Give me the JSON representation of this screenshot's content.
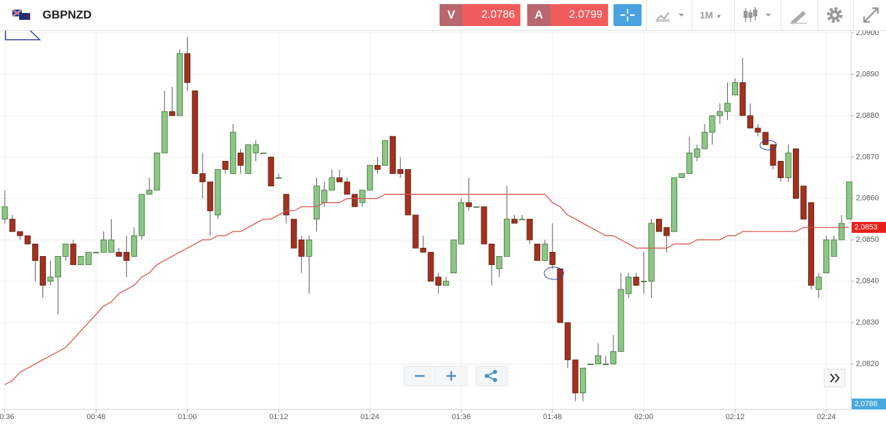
{
  "header": {
    "symbol": "GBPNZD",
    "bid_label": "V",
    "bid": 2.0786,
    "ask_label": "A",
    "ask": 2.0799,
    "timeframe": "1M"
  },
  "chart_data": {
    "type": "candlestick",
    "categories": [
      "00:36",
      null,
      null,
      null,
      null,
      null,
      null,
      null,
      null,
      null,
      null,
      null,
      "00:48",
      null,
      null,
      null,
      null,
      null,
      null,
      null,
      null,
      null,
      null,
      null,
      "01:00",
      null,
      null,
      null,
      null,
      null,
      null,
      null,
      null,
      null,
      null,
      null,
      "01:12",
      null,
      null,
      null,
      null,
      null,
      null,
      null,
      null,
      null,
      null,
      null,
      "01:24",
      null,
      null,
      null,
      null,
      null,
      null,
      null,
      null,
      null,
      null,
      null,
      "01:36",
      null,
      null,
      null,
      null,
      null,
      null,
      null,
      null,
      null,
      null,
      null,
      "01:48",
      null,
      null,
      null,
      null,
      null,
      null,
      null,
      null,
      null,
      null,
      null,
      "02:00",
      null,
      null,
      null,
      null,
      null,
      null,
      null,
      null,
      null,
      null,
      null,
      "02:12",
      null,
      null,
      null,
      null,
      null,
      null,
      null,
      null,
      null,
      null,
      null,
      "02:24",
      null,
      null,
      null
    ],
    "open": [
      2.0855,
      2.0855,
      2.0852,
      2.0851,
      2.0849,
      2.0846,
      2.084,
      2.0841,
      2.0846,
      2.0849,
      2.0844,
      2.0844,
      2.0847,
      2.0847,
      2.0847,
      2.0847,
      2.0847,
      2.0846,
      2.0851,
      2.0861,
      2.0862,
      2.0871,
      2.0881,
      2.088,
      2.0895,
      2.0886,
      2.0866,
      2.0864,
      2.0856,
      2.0869,
      2.0866,
      2.0871,
      2.0866,
      2.0871,
      2.0871,
      2.087,
      2.0865,
      2.0861,
      2.0855,
      2.085,
      2.0846,
      2.0855,
      2.0859,
      2.0862,
      2.0865,
      2.0864,
      2.0861,
      2.0859,
      2.0862,
      2.0868,
      2.0868,
      2.0875,
      2.0867,
      2.0867,
      2.0856,
      2.0848,
      2.0847,
      2.0841,
      2.0839,
      2.0842,
      2.0849,
      2.0859,
      2.0858,
      2.0858,
      2.0849,
      2.0843,
      2.0846,
      2.0855,
      2.0855,
      2.0855,
      2.0849,
      2.0845,
      2.0847,
      2.0843,
      2.083,
      2.0821,
      2.0813,
      2.082,
      2.082,
      2.082,
      2.082,
      2.0823,
      2.0837,
      2.0841,
      2.084,
      2.084,
      2.0855,
      2.0853,
      2.0852,
      2.0865,
      2.0866,
      2.087,
      2.0872,
      2.0876,
      2.088,
      2.0881,
      2.0885,
      2.0888,
      2.088,
      2.0877,
      2.0876,
      2.0873,
      2.0869,
      2.0865,
      2.0872,
      2.0863,
      2.0859,
      2.0838,
      2.0842,
      2.0846,
      2.085,
      2.0855
    ],
    "high": [
      2.0862,
      2.0856,
      2.0852,
      2.0851,
      2.0849,
      2.0846,
      2.0845,
      2.0846,
      2.0849,
      2.085,
      2.0846,
      2.0847,
      2.0847,
      2.0852,
      2.0855,
      2.0848,
      2.0851,
      2.0853,
      2.0861,
      2.0865,
      2.0871,
      2.0886,
      2.0887,
      2.0896,
      2.0899,
      2.0886,
      2.0871,
      2.0864,
      2.0867,
      2.0869,
      2.0878,
      2.0872,
      2.0873,
      2.0874,
      2.0871,
      2.087,
      2.0866,
      2.0861,
      2.0855,
      2.0851,
      2.0851,
      2.0865,
      2.0864,
      2.0867,
      2.0867,
      2.0865,
      2.0861,
      2.0862,
      2.0868,
      2.087,
      2.0874,
      2.0875,
      2.087,
      2.0867,
      2.0856,
      2.0851,
      2.0847,
      2.0842,
      2.0841,
      2.085,
      2.086,
      2.0865,
      2.0858,
      2.0858,
      2.0849,
      2.0846,
      2.0863,
      2.0856,
      2.0856,
      2.0855,
      2.0849,
      2.085,
      2.0854,
      2.0843,
      2.083,
      2.0821,
      2.0819,
      2.082,
      2.0825,
      2.0822,
      2.0827,
      2.0842,
      2.0842,
      2.0842,
      2.0847,
      2.0855,
      2.0855,
      2.0853,
      2.0865,
      2.0866,
      2.0875,
      2.0873,
      2.0878,
      2.088,
      2.0883,
      2.0888,
      2.0889,
      2.0894,
      2.0883,
      2.0878,
      2.0876,
      2.0873,
      2.0869,
      2.0873,
      2.0872,
      2.0863,
      2.0859,
      2.0842,
      2.0851,
      2.0851,
      2.0856,
      2.0864
    ],
    "low": [
      2.0854,
      2.0852,
      2.085,
      2.0849,
      2.084,
      2.0836,
      2.0839,
      2.0832,
      2.0845,
      2.0844,
      2.0844,
      2.0844,
      2.0847,
      2.0847,
      2.0847,
      2.0846,
      2.0841,
      2.0846,
      2.085,
      2.0861,
      2.0862,
      2.0871,
      2.088,
      2.088,
      2.0886,
      2.0866,
      2.086,
      2.0851,
      2.0855,
      2.0866,
      2.0866,
      2.0866,
      2.0866,
      2.0869,
      2.0871,
      2.0863,
      2.0865,
      2.0854,
      2.0848,
      2.0842,
      2.0837,
      2.0852,
      2.0858,
      2.0862,
      2.0864,
      2.0861,
      2.0858,
      2.0858,
      2.0862,
      2.0866,
      2.0868,
      2.0866,
      2.0865,
      2.0856,
      2.0848,
      2.0847,
      2.084,
      2.0837,
      2.0839,
      2.0842,
      2.0849,
      2.0857,
      2.0858,
      2.0849,
      2.0839,
      2.0841,
      2.0846,
      2.0854,
      2.0855,
      2.0849,
      2.0845,
      2.0845,
      2.0843,
      2.083,
      2.0819,
      2.0811,
      2.0811,
      2.082,
      2.082,
      2.082,
      2.082,
      2.0823,
      2.0836,
      2.0839,
      2.0837,
      2.0836,
      2.0852,
      2.0847,
      2.0852,
      2.0865,
      2.0866,
      2.0869,
      2.0872,
      2.0873,
      2.0878,
      2.0879,
      2.0885,
      2.088,
      2.0877,
      2.0875,
      2.0873,
      2.0867,
      2.0864,
      2.0864,
      2.086,
      2.0855,
      2.0838,
      2.0836,
      2.0842,
      2.0846,
      2.085,
      2.0855
    ],
    "close": [
      2.0858,
      2.0852,
      2.0851,
      2.0849,
      2.0845,
      2.0839,
      2.0841,
      2.0846,
      2.0849,
      2.0844,
      2.0846,
      2.0847,
      2.0847,
      2.085,
      2.085,
      2.0846,
      2.0845,
      2.0851,
      2.0861,
      2.0862,
      2.0871,
      2.0881,
      2.088,
      2.0895,
      2.0888,
      2.0866,
      2.0864,
      2.0857,
      2.0867,
      2.0867,
      2.0876,
      2.0868,
      2.0873,
      2.0873,
      2.0871,
      2.0863,
      2.0865,
      2.0856,
      2.0848,
      2.0846,
      2.085,
      2.0863,
      2.0862,
      2.0865,
      2.0864,
      2.0861,
      2.0858,
      2.0862,
      2.0868,
      2.0867,
      2.0874,
      2.0866,
      2.0866,
      2.0856,
      2.0848,
      2.0847,
      2.084,
      2.0839,
      2.084,
      2.085,
      2.0859,
      2.0858,
      2.0858,
      2.0849,
      2.0844,
      2.0846,
      2.0855,
      2.0854,
      2.0855,
      2.085,
      2.0845,
      2.0849,
      2.0844,
      2.083,
      2.0821,
      2.0813,
      2.0819,
      2.082,
      2.0822,
      2.082,
      2.0823,
      2.0838,
      2.0841,
      2.0839,
      2.084,
      2.0854,
      2.0852,
      2.0851,
      2.0865,
      2.0866,
      2.0871,
      2.0872,
      2.0876,
      2.088,
      2.0881,
      2.0883,
      2.0888,
      2.088,
      2.0877,
      2.0876,
      2.0873,
      2.0868,
      2.0865,
      2.0871,
      2.086,
      2.0855,
      2.0839,
      2.0841,
      2.085,
      2.085,
      2.0854,
      2.0864
    ],
    "up_color": "#8cc785",
    "down_color": "#a0321f",
    "ma": {
      "color": "#d9534f",
      "values": [
        2.0815,
        2.0816,
        2.0818,
        2.0819,
        2.082,
        2.0821,
        2.0822,
        2.0823,
        2.0824,
        2.0826,
        2.0828,
        2.083,
        2.0832,
        2.0834,
        2.0835,
        2.0837,
        2.0838,
        2.0839,
        2.0841,
        2.0842,
        2.0844,
        2.0845,
        2.0846,
        2.0847,
        2.0848,
        2.0849,
        2.085,
        2.085,
        2.0851,
        2.0851,
        2.0852,
        2.0852,
        2.0853,
        2.0854,
        2.0855,
        2.0855,
        2.0856,
        2.0857,
        2.0857,
        2.0858,
        2.0858,
        2.0858,
        2.0859,
        2.0859,
        2.0859,
        2.086,
        2.086,
        2.086,
        2.086,
        2.086,
        2.0861,
        2.0861,
        2.0861,
        2.0861,
        2.0861,
        2.0861,
        2.0861,
        2.0861,
        2.0861,
        2.0861,
        2.0861,
        2.0861,
        2.0861,
        2.0861,
        2.0861,
        2.0861,
        2.0861,
        2.0861,
        2.0861,
        2.0861,
        2.0861,
        2.0861,
        2.0859,
        2.0858,
        2.0856,
        2.0855,
        2.0854,
        2.0853,
        2.0852,
        2.0851,
        2.0851,
        2.085,
        2.0849,
        2.0848,
        2.0848,
        2.0848,
        2.0848,
        2.0848,
        2.0849,
        2.0849,
        2.0849,
        2.085,
        2.085,
        2.085,
        2.085,
        2.0851,
        2.0851,
        2.0852,
        2.0852,
        2.0852,
        2.0852,
        2.0852,
        2.0852,
        2.0852,
        2.0852,
        2.0853,
        2.0853,
        2.0853,
        2.0853,
        2.0853,
        2.0853,
        2.0853
      ]
    },
    "ylim": [
      2.0809,
      2.0901
    ],
    "yticks": [
      {
        "value": 2.082,
        "label": "2,0820"
      },
      {
        "value": 2.083,
        "label": "2,0830"
      },
      {
        "value": 2.084,
        "label": "2,0840"
      },
      {
        "value": 2.085,
        "label": "2,0850"
      },
      {
        "value": 2.086,
        "label": "2,0860"
      },
      {
        "value": 2.087,
        "label": "2,0870"
      },
      {
        "value": 2.088,
        "label": "2,0880"
      },
      {
        "value": 2.089,
        "label": "2,0890"
      },
      {
        "value": 2.09,
        "label": "2,0900"
      }
    ],
    "grid": true,
    "price_markers": [
      {
        "value": 2.0853,
        "label": "2,0853",
        "color": "#e8201c"
      },
      {
        "value": 2.0786,
        "label": "2,0786",
        "color": "#4aa8dc"
      }
    ]
  }
}
